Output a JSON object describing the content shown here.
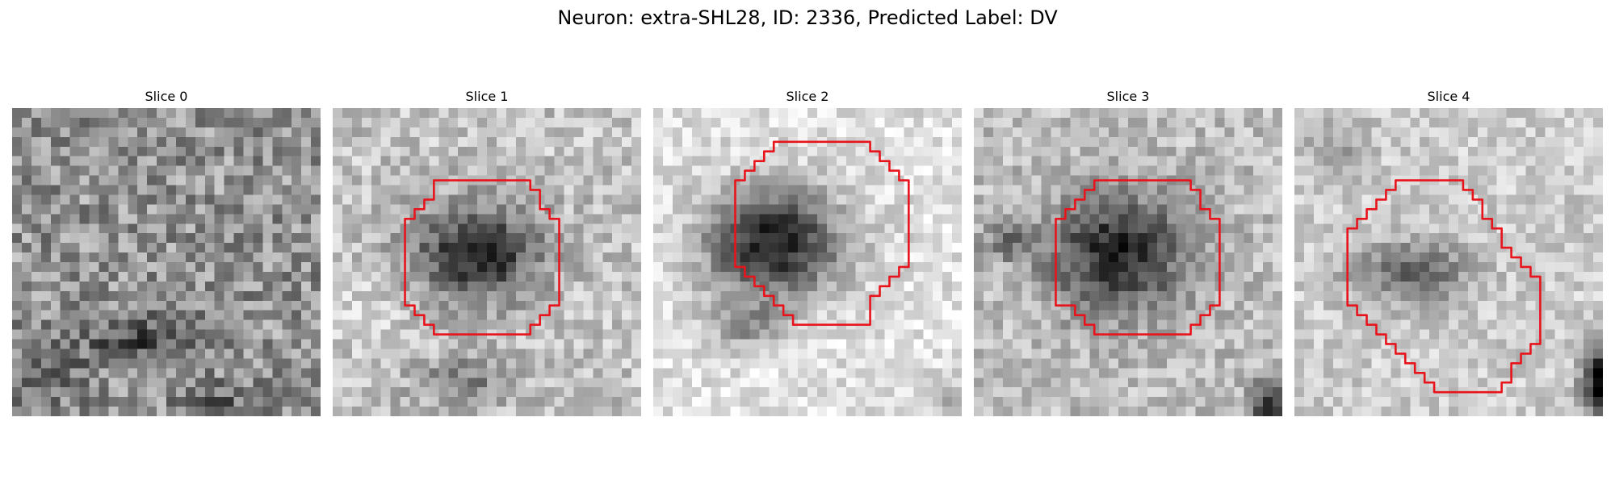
{
  "figure": {
    "title": "Neuron: extra-SHL28, ID: 2336, Predicted Label: DV"
  },
  "colors": {
    "contour": "#e8141c",
    "colormap": "grayscale"
  },
  "slices": [
    {
      "title": "Slice 0",
      "has_contour": false
    },
    {
      "title": "Slice 1",
      "has_contour": true
    },
    {
      "title": "Slice 2",
      "has_contour": true
    },
    {
      "title": "Slice 3",
      "has_contour": true
    },
    {
      "title": "Slice 4",
      "has_contour": true
    }
  ]
}
